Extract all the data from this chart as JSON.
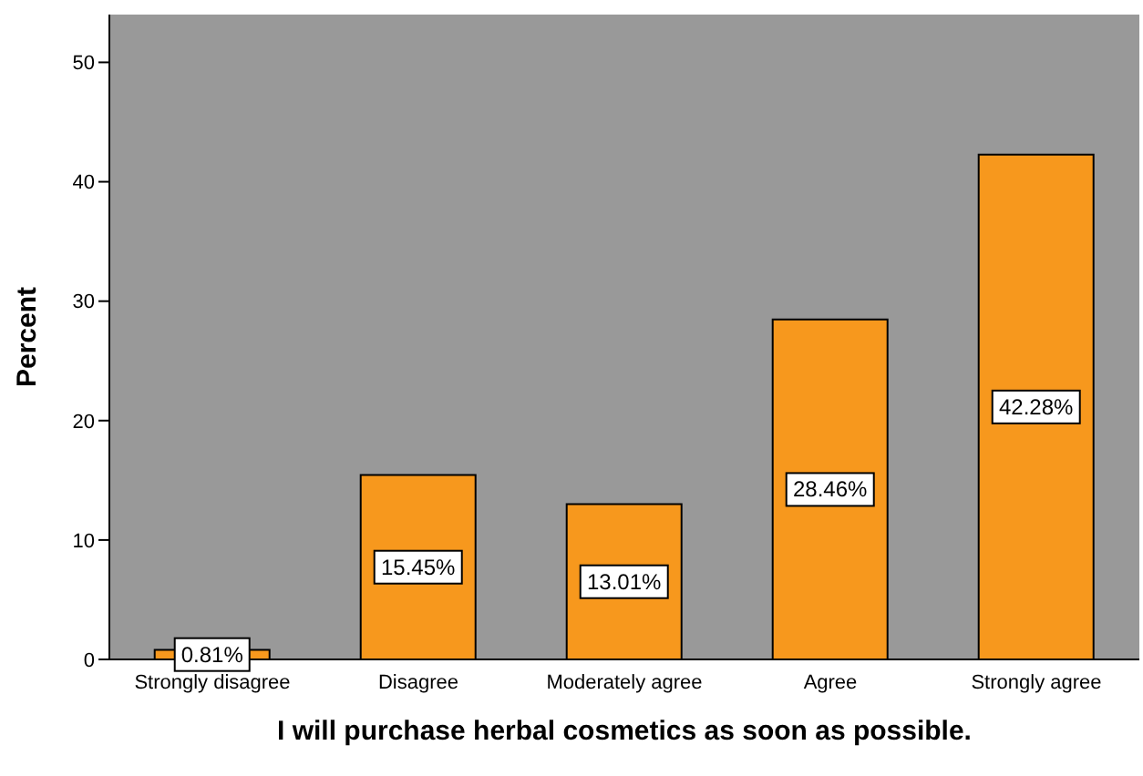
{
  "chart_data": {
    "type": "bar",
    "categories": [
      "Strongly disagree",
      "Disagree",
      "Moderately agree",
      "Agree",
      "Strongly agree"
    ],
    "values": [
      0.81,
      15.45,
      13.01,
      28.46,
      42.28
    ],
    "color": "#f7981d",
    "value_labels": [
      "0.81%",
      "15.45%",
      "13.01%",
      "28.46%",
      "42.28%"
    ],
    "xlabel": "I will purchase herbal cosmetics as soon as possible.",
    "ylabel": "Percent",
    "ylim": [
      0,
      54
    ],
    "yticks": [
      0,
      10,
      20,
      30,
      40,
      50
    ]
  }
}
